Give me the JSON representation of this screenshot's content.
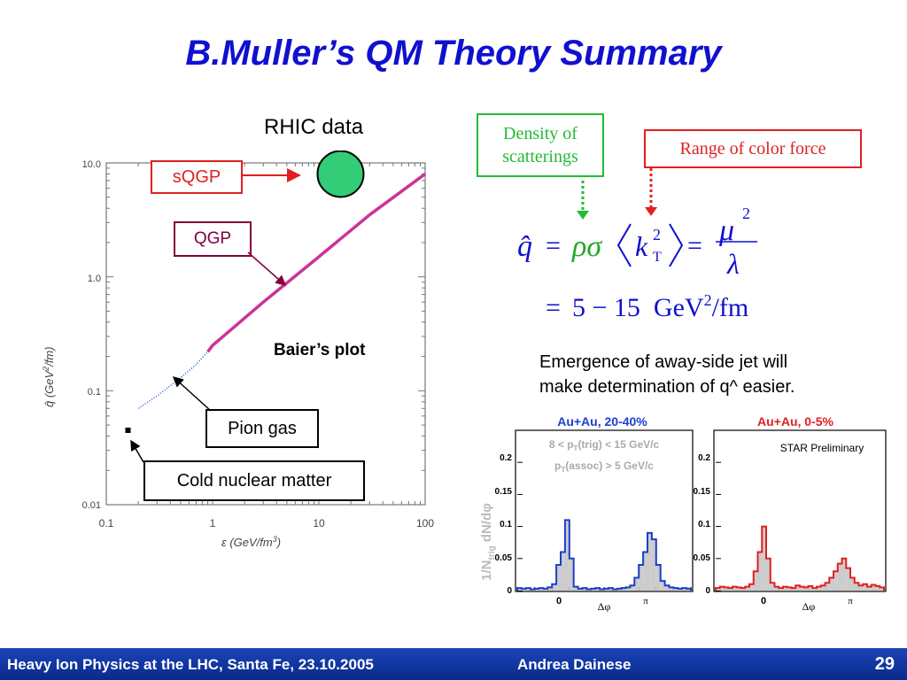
{
  "slide": {
    "title": "B.Muller’s QM Theory Summary",
    "footer_left": "Heavy Ion Physics at the LHC, Santa Fe, 23.10.2005",
    "footer_center": "Andrea Dainese",
    "page_number": "29"
  },
  "baier_plot": {
    "rhic_label": "RHIC data",
    "caption": "Baier’s plot",
    "annotations": [
      "sQGP",
      "QGP",
      "Pion gas",
      "Cold nuclear matter"
    ],
    "x_ticks": [
      "0.1",
      "1",
      "10",
      "100"
    ],
    "y_ticks": [
      "10.0",
      "1.0",
      "0.1",
      "0.01"
    ],
    "xlabel": "ε (GeV/fm",
    "xlabel_sup": "3",
    "xlabel_end": ")",
    "ylabel": "q̂ (GeV",
    "ylabel_sup": "2",
    "ylabel_end": "/fm)",
    "colors": {
      "qgp_line": "#cc3399",
      "rhic_marker": "#33cc77",
      "box_red": "#e02020",
      "box_qgp": "#800040"
    }
  },
  "formula": {
    "density_label_line1": "Density of",
    "density_label_line2": "scatterings",
    "range_label": "Range of color force",
    "q_hat": "q̂",
    "eq1": "=",
    "rho_sigma": "ρσ",
    "k": "k",
    "k_sup": "2",
    "k_sub": "T",
    "eq2": "=",
    "mu": "μ",
    "mu_sup": "2",
    "lambda": "λ",
    "eq3": "=",
    "value": "5 − 15  GeV",
    "value_sup": "2",
    "value_unit": "/fm",
    "colors": {
      "density": "#22bb33",
      "range": "#e02020",
      "rho_sigma": "#22aa22"
    }
  },
  "text_block": {
    "line1": "Emergence of away-side jet will",
    "line2": "make determination of q^ easier."
  },
  "star_plots": {
    "ylabel": "1/N",
    "ylabel_sub": "trig",
    "ylabel_end": " dN/dφ",
    "y_ticks": [
      "0.2",
      "0.15",
      "0.1",
      "0.05",
      "0"
    ],
    "x_ticks": [
      "0",
      "π"
    ],
    "xlabel": "Δφ",
    "left": {
      "title": "Au+Au, 20-40%",
      "cut1_a": "8 < p",
      "cut1_sub": "T",
      "cut1_b": "(trig) < 15 GeV/c",
      "cut2_a": "p",
      "cut2_sub": "T",
      "cut2_b": "(assoc) > 5 GeV/c"
    },
    "right": {
      "title": "Au+Au, 0-5%",
      "note": "STAR Preliminary"
    },
    "colors": {
      "left_title": "#1a3fcc",
      "right_title": "#e02020",
      "left_hist": "#1a3fcc",
      "right_hist": "#e02020",
      "fill": "#cccccc"
    }
  },
  "chart_data": [
    {
      "type": "scatter",
      "title": "",
      "xlabel": "ε (GeV/fm3)",
      "ylabel": "q̂ (GeV2/fm)",
      "x_scale": "log",
      "y_scale": "log",
      "xlim": [
        0.1,
        100
      ],
      "ylim": [
        0.01,
        10
      ],
      "series": [
        {
          "name": "QGP",
          "x": [
            0.9,
            1,
            3,
            10,
            30,
            100
          ],
          "y": [
            0.22,
            0.25,
            0.6,
            1.5,
            3.5,
            8
          ]
        },
        {
          "name": "Pion gas",
          "x": [
            0.2,
            0.3,
            0.5,
            0.7,
            0.9
          ],
          "y": [
            0.07,
            0.09,
            0.13,
            0.17,
            0.22
          ]
        },
        {
          "name": "Cold nuclear matter",
          "x": [
            0.16
          ],
          "y": [
            0.045
          ]
        },
        {
          "name": "RHIC data",
          "x": [
            16
          ],
          "y": [
            8
          ]
        }
      ],
      "grid": false
    },
    {
      "type": "bar",
      "title": "Au+Au, 20-40%",
      "xlabel": "Δφ",
      "ylabel": "1/Ntrig dN/dφ",
      "ylim": [
        0,
        0.25
      ],
      "values": [
        0.004,
        0.003,
        0.004,
        0.002,
        0.003,
        0.004,
        0.003,
        0.005,
        0.01,
        0.04,
        0.06,
        0.11,
        0.05,
        0.006,
        0.003,
        0.004,
        0.002,
        0.003,
        0.004,
        0.002,
        0.003,
        0.004,
        0.002,
        0.003,
        0.004,
        0.005,
        0.008,
        0.02,
        0.04,
        0.06,
        0.09,
        0.08,
        0.04,
        0.015,
        0.008,
        0.005,
        0.004,
        0.003,
        0.004,
        0.003
      ]
    },
    {
      "type": "bar",
      "title": "Au+Au, 0-5%",
      "xlabel": "Δφ",
      "ylabel": "1/Ntrig dN/dφ",
      "ylim": [
        0,
        0.25
      ],
      "values": [
        0.004,
        0.006,
        0.005,
        0.004,
        0.006,
        0.005,
        0.004,
        0.006,
        0.01,
        0.03,
        0.06,
        0.1,
        0.05,
        0.012,
        0.006,
        0.004,
        0.006,
        0.005,
        0.004,
        0.008,
        0.006,
        0.005,
        0.007,
        0.004,
        0.006,
        0.008,
        0.012,
        0.02,
        0.03,
        0.042,
        0.05,
        0.035,
        0.02,
        0.012,
        0.008,
        0.01,
        0.006,
        0.009,
        0.007,
        0.005
      ]
    }
  ]
}
